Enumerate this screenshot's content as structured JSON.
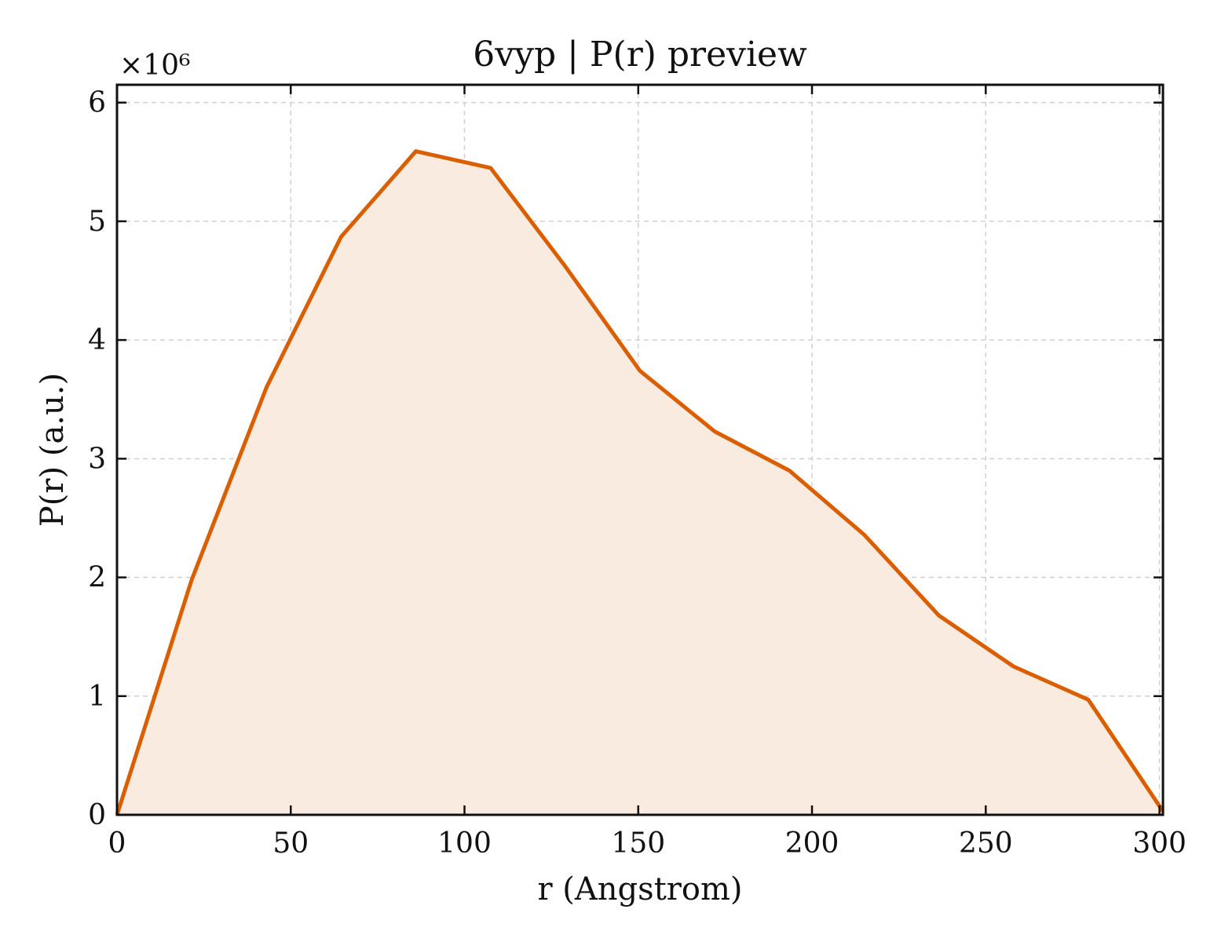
{
  "chart_data": {
    "type": "area",
    "title": "6vyp | P(r) preview",
    "xlabel": "r (Angstrom)",
    "ylabel": "P(r) (a.u.)",
    "y_multiplier_label": "×10⁶",
    "xlim": [
      0,
      301
    ],
    "ylim": [
      0,
      6.15
    ],
    "x_ticks": [
      0,
      50,
      100,
      150,
      200,
      250,
      300
    ],
    "y_ticks": [
      0,
      1,
      2,
      3,
      4,
      5,
      6
    ],
    "grid": true,
    "line_color": "#d95f02",
    "fill_color": "#f9ebe0",
    "series": [
      {
        "x": [
          0,
          21.5,
          43,
          64.5,
          86,
          107.5,
          129,
          150.5,
          172,
          193.5,
          215,
          236.5,
          258,
          279.5,
          301
        ],
        "y": [
          0,
          1.98,
          3.6,
          4.87,
          5.59,
          5.45,
          4.62,
          3.74,
          3.23,
          2.9,
          2.36,
          1.68,
          1.25,
          0.97,
          0.03
        ]
      }
    ]
  }
}
